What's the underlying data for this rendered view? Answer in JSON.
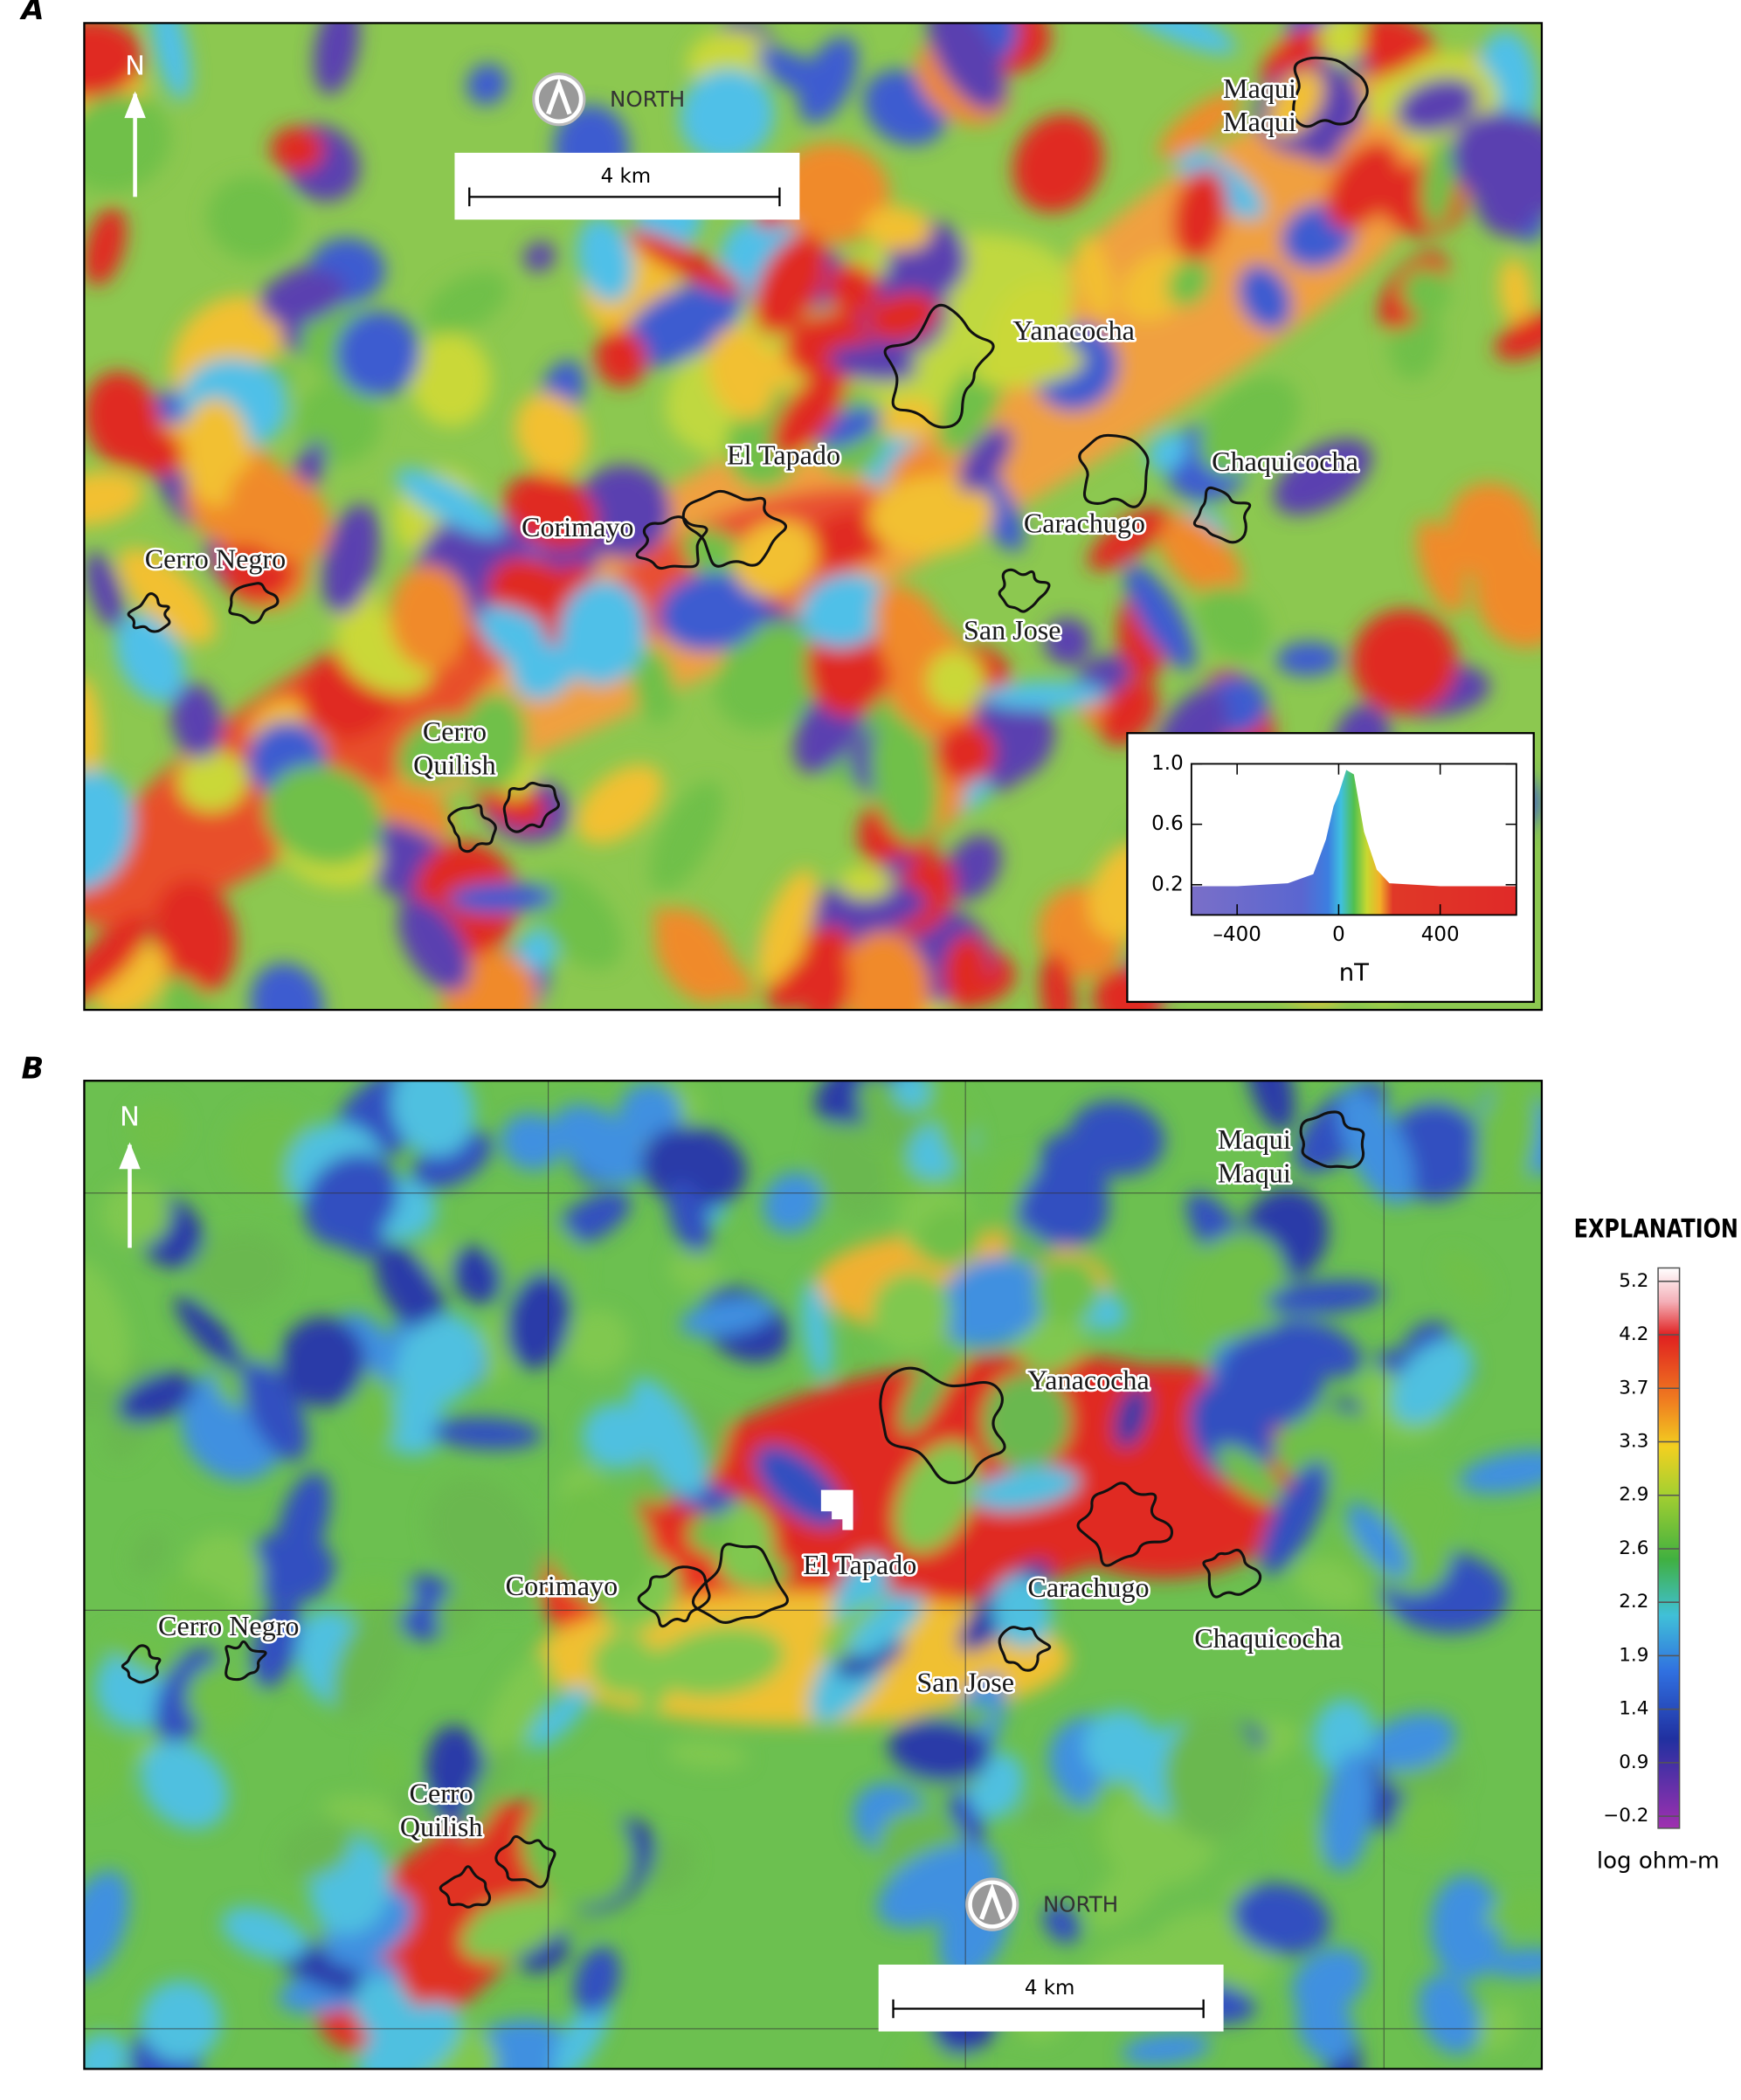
{
  "panels": [
    {
      "letter": "A",
      "north": "N",
      "north_badge": "NORTH",
      "scale_bar": "4 km",
      "places": [
        [
          "Maqui",
          "Maqui"
        ],
        [
          "Yanacocha"
        ],
        [
          "El Tapado"
        ],
        [
          "Chaquicocha"
        ],
        [
          "Corimayo"
        ],
        [
          "Carachugo"
        ],
        [
          "Cerro Negro"
        ],
        [
          "San Jose"
        ],
        [
          "Cerro",
          "Quilish"
        ]
      ]
    },
    {
      "letter": "B",
      "north": "N",
      "north_badge": "NORTH",
      "scale_bar": "4 km",
      "places": [
        [
          "Maqui",
          "Maqui"
        ],
        [
          "Yanacocha"
        ],
        [
          "El Tapado"
        ],
        [
          "Corimayo"
        ],
        [
          "Carachugo"
        ],
        [
          "Chaquicocha"
        ],
        [
          "Cerro Negro"
        ],
        [
          "San Jose"
        ],
        [
          "Cerro",
          "Quilish"
        ]
      ]
    }
  ],
  "chart_data": {
    "type": "area",
    "xlabel": "nT",
    "x": [
      -580,
      -400,
      -200,
      -100,
      -50,
      -20,
      0,
      30,
      60,
      100,
      150,
      200,
      400,
      700
    ],
    "series": [
      {
        "values": [
          0.19,
          0.19,
          0.21,
          0.27,
          0.5,
          0.72,
          0.8,
          0.96,
          0.93,
          0.55,
          0.3,
          0.21,
          0.19,
          0.19
        ]
      }
    ],
    "xlim": [
      -580,
      700
    ],
    "xticks": [
      {
        "value": -400,
        "label": "–400"
      },
      0,
      400
    ],
    "ylim": [
      0,
      1
    ],
    "yticks": [
      0.2,
      0.6,
      {
        "value": 1,
        "label": "1.0"
      }
    ]
  },
  "explanation": {
    "title": "EXPLANATION",
    "ticks": [
      5.2,
      4.2,
      3.7,
      3.3,
      2.9,
      2.6,
      2.2,
      1.9,
      1.4,
      0.9,
      {
        "value": -0.2,
        "label": "−0.2"
      }
    ],
    "unit": "log ohm-m"
  }
}
